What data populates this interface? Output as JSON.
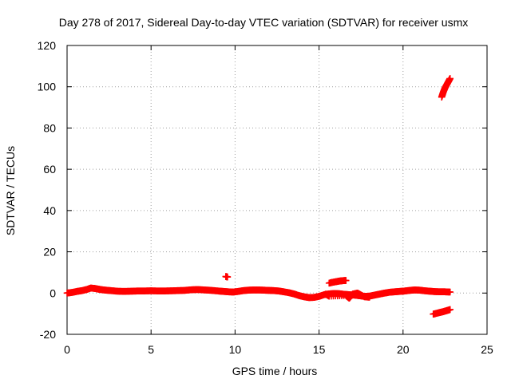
{
  "chart_data": {
    "type": "scatter",
    "title": "Day 278 of 2017, Sidereal Day-to-day VTEC variation (SDTVAR) for receiver usmx",
    "xlabel": "GPS time / hours",
    "ylabel": "SDTVAR / TECUs",
    "xlim": [
      0,
      25
    ],
    "ylim": [
      -20,
      120
    ],
    "xticks": [
      "0",
      "5",
      "10",
      "15",
      "20",
      "25"
    ],
    "yticks": [
      "-20",
      "0",
      "20",
      "40",
      "60",
      "80",
      "100",
      "120"
    ],
    "grid": true,
    "marker": "plus",
    "color": "#ff0000",
    "series": [
      {
        "name": "SDTVAR",
        "segments": [
          {
            "x": [
              0.0,
              0.3,
              0.6,
              0.9,
              1.2,
              1.4,
              1.6,
              1.8,
              2.0,
              2.3,
              2.6,
              3.0,
              3.4,
              3.8,
              4.2,
              4.6,
              5.0,
              5.4,
              5.8,
              6.2,
              6.6,
              7.0,
              7.4,
              7.8,
              8.2,
              8.6,
              9.0,
              9.3,
              9.6,
              9.9,
              10.2,
              10.5,
              10.8,
              11.1,
              11.4,
              11.7,
              12.0,
              12.3,
              12.6,
              12.9,
              13.2,
              13.5,
              13.8,
              14.1,
              14.4,
              14.7,
              15.0,
              15.3,
              15.6,
              15.9,
              16.2,
              16.5,
              16.8,
              17.1,
              17.4,
              17.7,
              18.0,
              18.3,
              18.6,
              18.9,
              19.2,
              19.5,
              19.8,
              20.1,
              20.4,
              20.7,
              21.0,
              21.3,
              21.6,
              21.9,
              22.2,
              22.5,
              22.8
            ],
            "y": [
              0.0,
              0.3,
              0.8,
              1.2,
              1.8,
              2.4,
              2.3,
              2.0,
              1.7,
              1.4,
              1.2,
              0.9,
              0.8,
              0.9,
              1.0,
              1.0,
              1.1,
              1.0,
              1.0,
              1.1,
              1.2,
              1.3,
              1.6,
              1.7,
              1.5,
              1.3,
              1.0,
              0.8,
              0.6,
              0.5,
              0.8,
              1.2,
              1.4,
              1.5,
              1.5,
              1.4,
              1.3,
              1.2,
              1.0,
              0.6,
              0.2,
              -0.4,
              -1.2,
              -1.8,
              -2.2,
              -2.1,
              -1.6,
              -0.8,
              -0.4,
              -0.2,
              -0.3,
              -0.6,
              -0.8,
              -1.0,
              -1.3,
              -1.6,
              -1.5,
              -1.0,
              -0.5,
              0.0,
              0.4,
              0.6,
              0.8,
              1.0,
              1.3,
              1.5,
              1.4,
              1.1,
              0.9,
              0.7,
              0.6,
              0.6,
              0.5
            ]
          },
          {
            "x": [
              9.45,
              9.55
            ],
            "y": [
              8.0,
              7.8
            ]
          },
          {
            "x": [
              15.6,
              15.8,
              16.0,
              16.2,
              16.4,
              16.6
            ],
            "y": [
              4.8,
              5.2,
              5.5,
              5.8,
              6.0,
              6.1
            ]
          },
          {
            "x": [
              15.4,
              15.6,
              16.6,
              16.8,
              17.0,
              17.3,
              17.7,
              18.0
            ],
            "y": [
              -0.5,
              -1.5,
              -1.2,
              -2.5,
              -0.5,
              0.0,
              -1.8,
              -2.0
            ]
          },
          {
            "x": [
              21.8,
              22.0,
              22.2,
              22.4,
              22.6,
              22.8
            ],
            "y": [
              -10.2,
              -9.8,
              -9.4,
              -9.0,
              -8.5,
              -8.0
            ]
          },
          {
            "x": [
              22.3,
              22.4,
              22.5,
              22.6,
              22.7,
              22.8
            ],
            "y": [
              95.0,
              97.5,
              99.5,
              101.0,
              102.5,
              104.0
            ]
          }
        ]
      }
    ]
  }
}
